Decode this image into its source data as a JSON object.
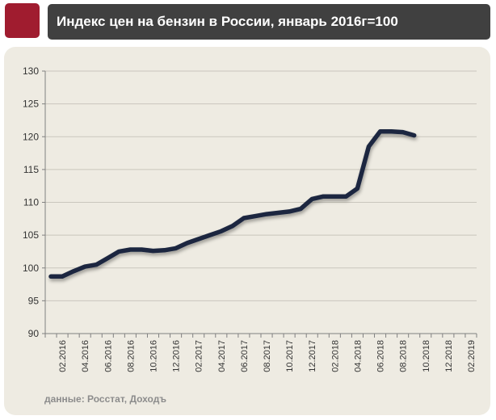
{
  "header": {
    "title": "Индекс цен на бензин в России, январь 2016г=100"
  },
  "source": "данные: Росстат, Доходъ",
  "colors": {
    "brand": "#a01c2f",
    "title_bg": "#404040",
    "panel_bg": "#eeebe2",
    "line": "#1b2840"
  },
  "chart_data": {
    "type": "line",
    "title": "Индекс цен на бензин в России, январь 2016г=100",
    "xlabel": "",
    "ylabel": "",
    "ylim": [
      90,
      130
    ],
    "y_ticks": [
      "90",
      "95",
      "100",
      "105",
      "110",
      "115",
      "120",
      "125",
      "130"
    ],
    "x_tick_labels": [
      "02.2016",
      "04.2016",
      "06.2016",
      "08.2016",
      "10.2016",
      "12.2016",
      "02.2017",
      "04.2017",
      "06.2017",
      "08.2017",
      "10.2017",
      "12.2017",
      "02.2018",
      "04.2018",
      "06.2018",
      "08.2018",
      "10.2018",
      "12.2018",
      "02.2019"
    ],
    "grid": true,
    "legend": "none",
    "series": [
      {
        "x": [
          "01.2016",
          "02.2016",
          "03.2016",
          "04.2016",
          "05.2016",
          "06.2016",
          "07.2016",
          "08.2016",
          "09.2016",
          "10.2016",
          "11.2016",
          "12.2016",
          "01.2017",
          "02.2017",
          "03.2017",
          "04.2017",
          "05.2017",
          "06.2017",
          "07.2017",
          "08.2017",
          "09.2017",
          "10.2017",
          "11.2017",
          "12.2017",
          "01.2018",
          "02.2018",
          "03.2018",
          "04.2018",
          "05.2018",
          "06.2018",
          "07.2018",
          "08.2018",
          "09.2018"
        ],
        "values": [
          98.7,
          98.7,
          99.5,
          100.2,
          100.5,
          101.5,
          102.5,
          102.8,
          102.8,
          102.6,
          102.7,
          103.0,
          103.8,
          104.4,
          105.0,
          105.6,
          106.4,
          107.6,
          107.9,
          108.2,
          108.4,
          108.6,
          109.0,
          110.5,
          110.9,
          110.9,
          110.9,
          112.1,
          118.5,
          120.8,
          120.8,
          120.7,
          120.2
        ]
      }
    ]
  }
}
